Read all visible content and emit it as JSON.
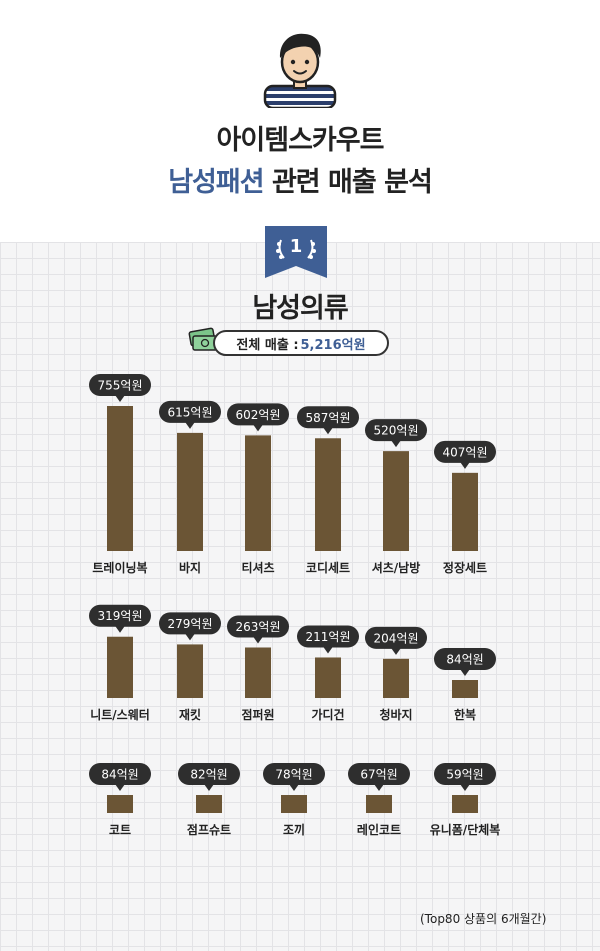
{
  "header": {
    "title_line1": "아이템스카우트",
    "title_line2_highlight": "남성패션",
    "title_line2_rest": "관련 매출 분석"
  },
  "section": {
    "rank": "1",
    "title": "남성의류",
    "total_label": "전체 매출 :",
    "total_value": "5,216억원"
  },
  "footnote": "(Top80 상품의 6개월간)",
  "colors": {
    "bar": "#6b5535",
    "bubble": "#2e2e2e",
    "accent": "#3f5f95"
  },
  "chart_data": {
    "type": "bar",
    "unit": "억원",
    "categories": [
      "트레이닝복",
      "바지",
      "티셔츠",
      "코디세트",
      "셔츠/남방",
      "정장세트",
      "니트/스웨터",
      "재킷",
      "점퍼원",
      "가디건",
      "청바지",
      "한복",
      "코트",
      "점프슈트",
      "조끼",
      "레인코트",
      "유니폼/단체복"
    ],
    "values": [
      755,
      615,
      602,
      587,
      520,
      407,
      319,
      279,
      263,
      211,
      204,
      84,
      84,
      82,
      78,
      67,
      59
    ],
    "labels": [
      "755억원",
      "615억원",
      "602억원",
      "587억원",
      "520억원",
      "407억원",
      "319억원",
      "279억원",
      "263억원",
      "211억원",
      "204억원",
      "84억원",
      "84억원",
      "82억원",
      "78억원",
      "67억원",
      "59억원"
    ],
    "rows": [
      {
        "start": 0,
        "count": 6
      },
      {
        "start": 6,
        "count": 6
      },
      {
        "start": 12,
        "count": 5
      }
    ]
  }
}
